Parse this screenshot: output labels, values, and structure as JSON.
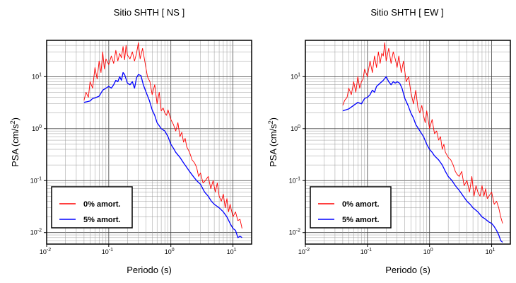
{
  "colors": {
    "series0": "#ff0000",
    "series1": "#0000ff"
  },
  "chart_data": [
    {
      "type": "line",
      "title": "Sitio SHTH [ NS ]",
      "xlabel": "Periodo (s)",
      "ylabel_base": "PSA (cm/s",
      "ylabel_sup": "2",
      "ylabel_close": ")",
      "xscale": "log",
      "yscale": "log",
      "xlim": [
        0.01,
        20
      ],
      "ylim": [
        0.006,
        50
      ],
      "grid": true,
      "legend_position": "bottom-left",
      "x_ticks": [
        {
          "base": "10",
          "exp": "-2"
        },
        {
          "base": "10",
          "exp": "-1"
        },
        {
          "base": "10",
          "exp": "0"
        },
        {
          "base": "10",
          "exp": "1"
        }
      ],
      "y_ticks": [
        {
          "base": "10",
          "exp": "-2"
        },
        {
          "base": "10",
          "exp": "-1"
        },
        {
          "base": "10",
          "exp": "0"
        },
        {
          "base": "10",
          "exp": "1"
        }
      ],
      "series": [
        {
          "name": "0% amort.",
          "x": [
            0.04,
            0.043,
            0.047,
            0.05,
            0.055,
            0.06,
            0.065,
            0.07,
            0.075,
            0.08,
            0.085,
            0.09,
            0.1,
            0.11,
            0.12,
            0.13,
            0.14,
            0.15,
            0.16,
            0.17,
            0.18,
            0.19,
            0.2,
            0.22,
            0.24,
            0.26,
            0.28,
            0.3,
            0.32,
            0.35,
            0.38,
            0.42,
            0.46,
            0.5,
            0.55,
            0.6,
            0.65,
            0.7,
            0.75,
            0.8,
            0.85,
            0.9,
            1.0,
            1.1,
            1.2,
            1.3,
            1.4,
            1.5,
            1.6,
            1.7,
            1.8,
            2.0,
            2.2,
            2.4,
            2.6,
            2.8,
            3.0,
            3.3,
            3.6,
            4.0,
            4.4,
            4.8,
            5.2,
            5.6,
            6.0,
            6.5,
            7.0,
            7.5,
            8.0,
            8.5,
            9.0,
            10.0,
            11.0,
            12.0,
            13.0,
            14.0
          ],
          "y": [
            3.5,
            5.0,
            4.0,
            8.0,
            6.0,
            15.0,
            9.0,
            20.0,
            12.0,
            30.0,
            14.0,
            22.0,
            17.0,
            25.0,
            18.0,
            32.0,
            20.0,
            28.0,
            23.0,
            38.0,
            21.0,
            40.0,
            26.0,
            22.0,
            30.0,
            20.0,
            28.0,
            45.0,
            22.0,
            35.0,
            20.0,
            10.0,
            8.0,
            4.5,
            7.0,
            3.0,
            5.0,
            2.2,
            2.5,
            2.0,
            1.8,
            2.3,
            1.5,
            1.2,
            0.9,
            1.3,
            0.7,
            0.85,
            0.55,
            0.65,
            0.45,
            0.35,
            0.25,
            0.22,
            0.18,
            0.12,
            0.14,
            0.09,
            0.1,
            0.12,
            0.07,
            0.1,
            0.06,
            0.09,
            0.05,
            0.04,
            0.055,
            0.03,
            0.045,
            0.025,
            0.035,
            0.02,
            0.025,
            0.017,
            0.018,
            0.012
          ]
        },
        {
          "name": "5% amort.",
          "x": [
            0.04,
            0.045,
            0.05,
            0.055,
            0.06,
            0.07,
            0.08,
            0.09,
            0.1,
            0.11,
            0.12,
            0.13,
            0.14,
            0.15,
            0.16,
            0.17,
            0.18,
            0.2,
            0.22,
            0.24,
            0.26,
            0.28,
            0.3,
            0.33,
            0.36,
            0.4,
            0.45,
            0.5,
            0.55,
            0.6,
            0.7,
            0.8,
            0.9,
            1.0,
            1.1,
            1.2,
            1.4,
            1.6,
            1.8,
            2.0,
            2.3,
            2.6,
            3.0,
            3.5,
            4.0,
            4.5,
            5.0,
            6.0,
            7.0,
            8.0,
            9.0,
            10.0,
            11.0,
            12.0,
            13.0,
            14.0
          ],
          "y": [
            3.2,
            3.3,
            3.4,
            3.8,
            3.9,
            4.2,
            5.5,
            6.0,
            6.5,
            6.0,
            7.0,
            8.5,
            8.0,
            10.0,
            8.5,
            12.0,
            11.0,
            7.5,
            7.0,
            8.0,
            6.0,
            9.5,
            11.0,
            10.5,
            7.0,
            5.0,
            3.5,
            2.3,
            1.8,
            1.3,
            1.0,
            0.9,
            0.7,
            0.5,
            0.42,
            0.35,
            0.28,
            0.22,
            0.18,
            0.15,
            0.12,
            0.1,
            0.085,
            0.06,
            0.05,
            0.04,
            0.035,
            0.03,
            0.025,
            0.02,
            0.015,
            0.012,
            0.011,
            0.008,
            0.0085,
            0.008
          ]
        }
      ]
    },
    {
      "type": "line",
      "title": "Sitio SHTH [ EW ]",
      "xlabel": "Periodo (s)",
      "ylabel_base": "PSA (cm/s",
      "ylabel_sup": "2",
      "ylabel_close": ")",
      "xscale": "log",
      "yscale": "log",
      "xlim": [
        0.01,
        20
      ],
      "ylim": [
        0.006,
        50
      ],
      "grid": true,
      "legend_position": "bottom-left",
      "x_ticks": [
        {
          "base": "10",
          "exp": "-2"
        },
        {
          "base": "10",
          "exp": "-1"
        },
        {
          "base": "10",
          "exp": "0"
        },
        {
          "base": "10",
          "exp": "1"
        }
      ],
      "y_ticks": [
        {
          "base": "10",
          "exp": "-2"
        },
        {
          "base": "10",
          "exp": "-1"
        },
        {
          "base": "10",
          "exp": "0"
        },
        {
          "base": "10",
          "exp": "1"
        }
      ],
      "series": [
        {
          "name": "0% amort.",
          "x": [
            0.04,
            0.043,
            0.047,
            0.05,
            0.055,
            0.06,
            0.065,
            0.07,
            0.075,
            0.08,
            0.085,
            0.09,
            0.1,
            0.11,
            0.12,
            0.13,
            0.14,
            0.15,
            0.16,
            0.17,
            0.18,
            0.19,
            0.2,
            0.22,
            0.24,
            0.26,
            0.28,
            0.3,
            0.32,
            0.35,
            0.38,
            0.42,
            0.46,
            0.5,
            0.55,
            0.6,
            0.65,
            0.7,
            0.75,
            0.8,
            0.85,
            0.9,
            1.0,
            1.1,
            1.2,
            1.3,
            1.4,
            1.5,
            1.6,
            1.7,
            1.8,
            2.0,
            2.2,
            2.4,
            2.6,
            2.8,
            3.0,
            3.3,
            3.6,
            4.0,
            4.4,
            4.8,
            5.2,
            5.6,
            6.0,
            6.5,
            7.0,
            7.5,
            8.0,
            8.5,
            9.0,
            10.0,
            11.0,
            12.0,
            13.0,
            14.0,
            15.0
          ],
          "y": [
            2.8,
            3.5,
            4.0,
            6.0,
            4.5,
            8.0,
            5.0,
            10.0,
            6.0,
            8.0,
            9.0,
            14.0,
            10.0,
            20.0,
            12.0,
            25.0,
            15.0,
            30.0,
            18.0,
            28.0,
            25.0,
            45.0,
            20.0,
            35.0,
            18.0,
            30.0,
            22.0,
            15.0,
            25.0,
            12.0,
            20.0,
            8.0,
            10.0,
            5.0,
            3.0,
            5.5,
            2.5,
            2.0,
            2.8,
            1.8,
            1.3,
            2.2,
            1.0,
            1.5,
            0.8,
            0.9,
            0.6,
            0.7,
            0.4,
            0.5,
            0.35,
            0.28,
            0.25,
            0.2,
            0.15,
            0.13,
            0.12,
            0.15,
            0.08,
            0.1,
            0.06,
            0.12,
            0.05,
            0.08,
            0.06,
            0.05,
            0.08,
            0.05,
            0.07,
            0.045,
            0.05,
            0.06,
            0.035,
            0.04,
            0.03,
            0.02,
            0.015
          ]
        },
        {
          "name": "5% amort.",
          "x": [
            0.04,
            0.045,
            0.05,
            0.055,
            0.06,
            0.07,
            0.08,
            0.09,
            0.1,
            0.11,
            0.12,
            0.13,
            0.14,
            0.15,
            0.16,
            0.17,
            0.18,
            0.2,
            0.22,
            0.24,
            0.26,
            0.28,
            0.3,
            0.33,
            0.36,
            0.4,
            0.45,
            0.5,
            0.55,
            0.6,
            0.7,
            0.8,
            0.9,
            1.0,
            1.1,
            1.2,
            1.4,
            1.6,
            1.8,
            2.0,
            2.3,
            2.6,
            3.0,
            3.5,
            4.0,
            4.5,
            5.0,
            6.0,
            7.0,
            8.0,
            9.0,
            10.0,
            11.0,
            12.0,
            13.0,
            14.0,
            15.0
          ],
          "y": [
            2.2,
            2.3,
            2.4,
            2.6,
            2.8,
            3.2,
            3.0,
            3.8,
            4.0,
            4.5,
            5.5,
            5.0,
            6.5,
            7.0,
            7.5,
            8.0,
            8.5,
            10.0,
            8.0,
            7.0,
            8.0,
            7.5,
            8.0,
            7.5,
            6.0,
            3.8,
            2.8,
            2.0,
            1.6,
            1.2,
            0.9,
            0.7,
            0.5,
            0.4,
            0.35,
            0.3,
            0.25,
            0.2,
            0.15,
            0.12,
            0.1,
            0.08,
            0.065,
            0.05,
            0.04,
            0.035,
            0.03,
            0.025,
            0.02,
            0.018,
            0.016,
            0.015,
            0.013,
            0.011,
            0.009,
            0.007,
            0.0065
          ]
        }
      ]
    }
  ]
}
